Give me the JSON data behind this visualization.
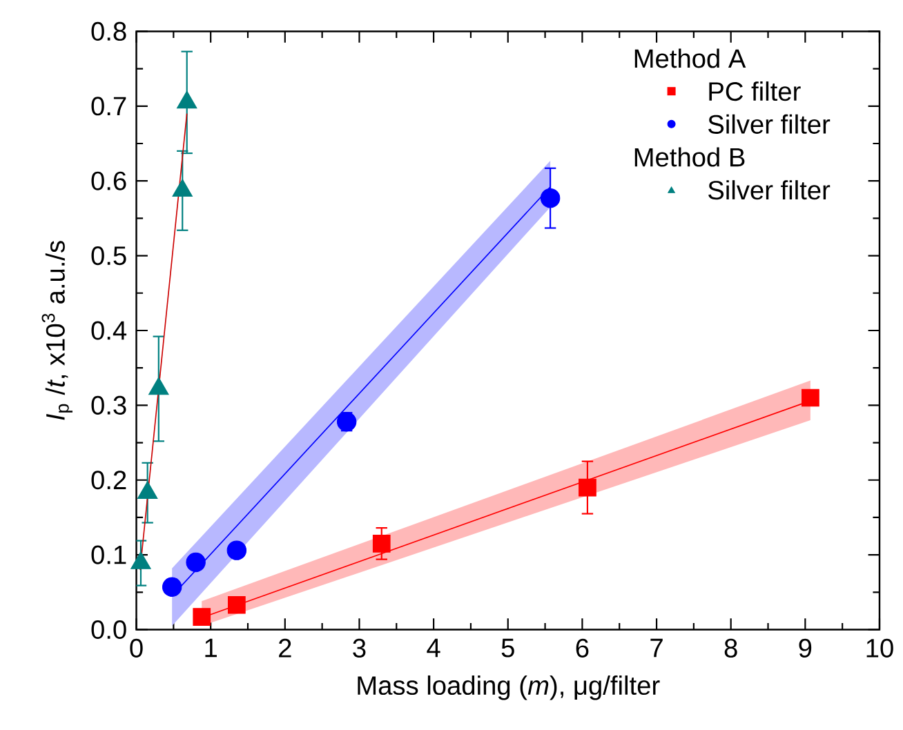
{
  "chart_data": {
    "type": "scatter",
    "xlabel": "Mass loading (*m*), μg/filter",
    "ylabel": "*I*$_{p}$ /*t*, x10$^{3}$ a.u./s",
    "xlim": [
      0,
      10
    ],
    "ylim": [
      0,
      0.8
    ],
    "xticks": [
      0,
      1,
      2,
      3,
      4,
      5,
      6,
      7,
      8,
      9,
      10
    ],
    "yticks": [
      {
        "value": 0,
        "label": "0.0"
      },
      0.1,
      0.2,
      0.3,
      0.4,
      0.5,
      0.6,
      0.7,
      0.8
    ],
    "legend": "top right",
    "grid": false,
    "annotations": [
      "Method A",
      "Method B"
    ],
    "series": [
      {
        "name": "PC filter",
        "marker": "square",
        "color": "#ff0000",
        "x": [
          0.88,
          1.35,
          3.3,
          6.07,
          9.07
        ],
        "values": [
          0.017,
          0.033,
          0.115,
          0.19,
          0.31
        ],
        "errors": [
          0.005,
          0.008,
          0.021,
          0.035,
          0.006
        ]
      },
      {
        "name": "Silver filter",
        "marker": "circle",
        "color": "#0000ff",
        "x": [
          0.48,
          0.8,
          1.35,
          2.83,
          5.57
        ],
        "values": [
          0.057,
          0.09,
          0.106,
          0.278,
          0.577
        ],
        "errors": [
          null,
          null,
          null,
          0.012,
          0.04
        ]
      },
      {
        "name": "Silver filter",
        "marker": "triangle",
        "color": "#008080",
        "x": [
          0.06,
          0.15,
          0.3,
          0.62,
          0.68
        ],
        "values": [
          0.089,
          0.183,
          0.322,
          0.587,
          0.705
        ],
        "errors": [
          0.03,
          0.04,
          0.07,
          0.053,
          0.068
        ]
      },
      {
        "type": "line",
        "color": "#ff0000",
        "x": [
          0.88,
          9.07
        ],
        "values": [
          0.016,
          0.306
        ],
        "lower": [
          0.005,
          0.28
        ],
        "upper": [
          0.038,
          0.333
        ]
      },
      {
        "type": "line",
        "color": "#0000ff",
        "x": [
          0.48,
          5.57
        ],
        "values": [
          0.045,
          0.592
        ],
        "lower": [
          0.005,
          0.565
        ],
        "upper": [
          0.082,
          0.627
        ]
      },
      {
        "type": "line",
        "color": "#cc0000",
        "x": [
          0.05,
          0.68
        ],
        "values": [
          0.08,
          0.69
        ]
      }
    ]
  }
}
